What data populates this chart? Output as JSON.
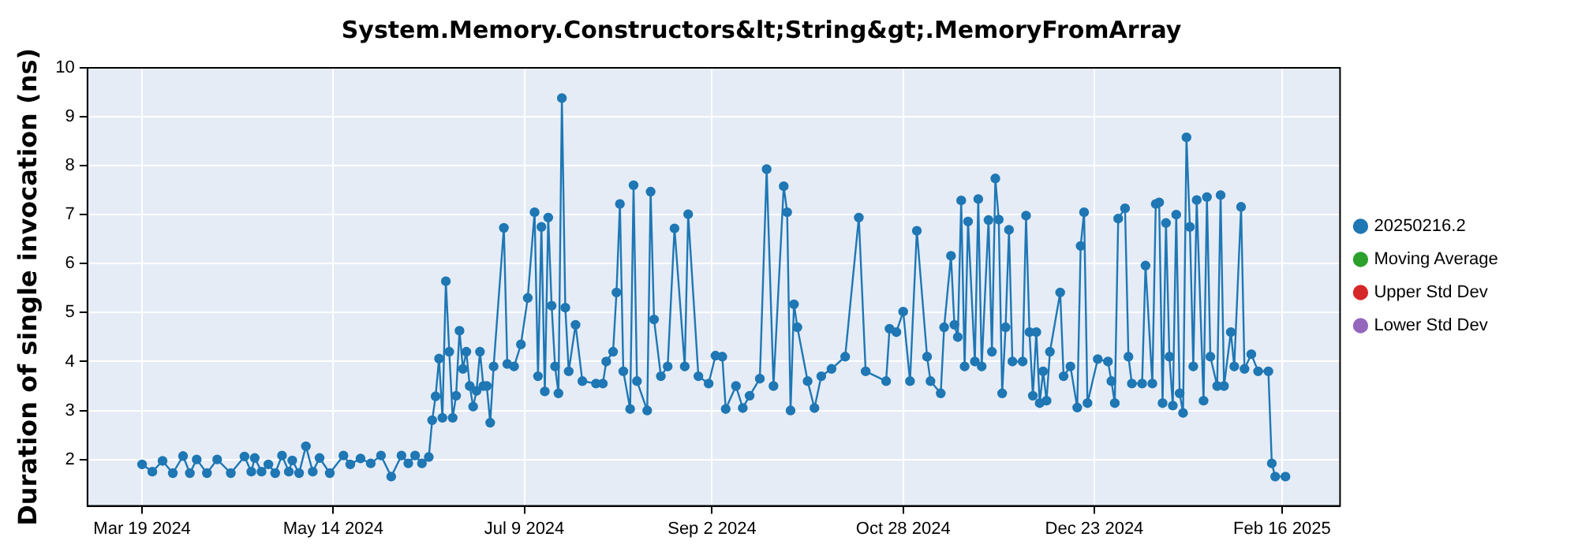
{
  "chart_data": {
    "type": "line",
    "title": "System.Memory.Constructors&lt;String&gt;.MemoryFromArray",
    "ylabel": "Duration of single invocation (ns)",
    "xlim": [
      "2024-03-03",
      "2025-03-05"
    ],
    "xticks": [
      {
        "value": "2024-03-19",
        "label": "Mar 19 2024"
      },
      {
        "value": "2024-05-14",
        "label": "May 14 2024"
      },
      {
        "value": "2024-07-09",
        "label": "Jul 9 2024"
      },
      {
        "value": "2024-09-02",
        "label": "Sep 2 2024"
      },
      {
        "value": "2024-10-28",
        "label": "Oct 28 2024"
      },
      {
        "value": "2024-12-23",
        "label": "Dec 23 2024"
      },
      {
        "value": "2025-02-16",
        "label": "Feb 16 2025"
      }
    ],
    "ylim": [
      1.05,
      10
    ],
    "yticks": [
      2,
      3,
      4,
      5,
      6,
      7,
      8,
      9,
      10
    ],
    "grid": true,
    "legend": "right",
    "marker": "circle",
    "series": [
      {
        "name": "20250216.2",
        "color": "#1f77b4",
        "x": [
          "2024-03-19",
          "2024-03-22",
          "2024-03-25",
          "2024-03-28",
          "2024-03-31",
          "2024-04-02",
          "2024-04-04",
          "2024-04-07",
          "2024-04-10",
          "2024-04-14",
          "2024-04-18",
          "2024-04-20",
          "2024-04-21",
          "2024-04-23",
          "2024-04-25",
          "2024-04-27",
          "2024-04-29",
          "2024-05-01",
          "2024-05-02",
          "2024-05-04",
          "2024-05-06",
          "2024-05-08",
          "2024-05-10",
          "2024-05-13",
          "2024-05-17",
          "2024-05-19",
          "2024-05-22",
          "2024-05-25",
          "2024-05-28",
          "2024-05-31",
          "2024-06-03",
          "2024-06-05",
          "2024-06-07",
          "2024-06-09",
          "2024-06-11",
          "2024-06-12",
          "2024-06-13",
          "2024-06-14",
          "2024-06-15",
          "2024-06-16",
          "2024-06-17",
          "2024-06-18",
          "2024-06-19",
          "2024-06-20",
          "2024-06-21",
          "2024-06-22",
          "2024-06-23",
          "2024-06-24",
          "2024-06-25",
          "2024-06-26",
          "2024-06-27",
          "2024-06-28",
          "2024-06-29",
          "2024-06-30",
          "2024-07-03",
          "2024-07-04",
          "2024-07-06",
          "2024-07-08",
          "2024-07-10",
          "2024-07-12",
          "2024-07-13",
          "2024-07-14",
          "2024-07-15",
          "2024-07-16",
          "2024-07-17",
          "2024-07-18",
          "2024-07-19",
          "2024-07-20",
          "2024-07-21",
          "2024-07-22",
          "2024-07-24",
          "2024-07-26",
          "2024-07-30",
          "2024-08-01",
          "2024-08-02",
          "2024-08-04",
          "2024-08-05",
          "2024-08-06",
          "2024-08-07",
          "2024-08-09",
          "2024-08-10",
          "2024-08-11",
          "2024-08-14",
          "2024-08-15",
          "2024-08-16",
          "2024-08-18",
          "2024-08-20",
          "2024-08-22",
          "2024-08-25",
          "2024-08-26",
          "2024-08-29",
          "2024-09-01",
          "2024-09-03",
          "2024-09-05",
          "2024-09-06",
          "2024-09-09",
          "2024-09-11",
          "2024-09-13",
          "2024-09-16",
          "2024-09-18",
          "2024-09-20",
          "2024-09-23",
          "2024-09-24",
          "2024-09-25",
          "2024-09-26",
          "2024-09-27",
          "2024-09-30",
          "2024-10-02",
          "2024-10-04",
          "2024-10-07",
          "2024-10-11",
          "2024-10-15",
          "2024-10-17",
          "2024-10-23",
          "2024-10-24",
          "2024-10-26",
          "2024-10-28",
          "2024-10-30",
          "2024-11-01",
          "2024-11-04",
          "2024-11-05",
          "2024-11-08",
          "2024-11-09",
          "2024-11-11",
          "2024-11-12",
          "2024-11-13",
          "2024-11-14",
          "2024-11-15",
          "2024-11-16",
          "2024-11-18",
          "2024-11-19",
          "2024-11-20",
          "2024-11-22",
          "2024-11-23",
          "2024-11-24",
          "2024-11-25",
          "2024-11-26",
          "2024-11-27",
          "2024-11-28",
          "2024-11-29",
          "2024-12-02",
          "2024-12-03",
          "2024-12-04",
          "2024-12-05",
          "2024-12-06",
          "2024-12-07",
          "2024-12-08",
          "2024-12-09",
          "2024-12-10",
          "2024-12-13",
          "2024-12-14",
          "2024-12-16",
          "2024-12-18",
          "2024-12-19",
          "2024-12-20",
          "2024-12-21",
          "2024-12-24",
          "2024-12-27",
          "2024-12-28",
          "2024-12-29",
          "2024-12-30",
          "2025-01-01",
          "2025-01-02",
          "2025-01-03",
          "2025-01-06",
          "2025-01-07",
          "2025-01-09",
          "2025-01-10",
          "2025-01-11",
          "2025-01-12",
          "2025-01-13",
          "2025-01-14",
          "2025-01-15",
          "2025-01-16",
          "2025-01-17",
          "2025-01-18",
          "2025-01-19",
          "2025-01-20",
          "2025-01-21",
          "2025-01-22",
          "2025-01-24",
          "2025-01-25",
          "2025-01-26",
          "2025-01-28",
          "2025-01-29",
          "2025-01-30",
          "2025-02-01",
          "2025-02-02",
          "2025-02-04",
          "2025-02-05",
          "2025-02-07",
          "2025-02-09",
          "2025-02-12",
          "2025-02-13",
          "2025-02-14",
          "2025-02-17"
        ],
        "values": [
          1.9,
          1.75,
          1.97,
          1.72,
          2.07,
          1.72,
          2.0,
          1.72,
          2.0,
          1.72,
          2.06,
          1.75,
          2.03,
          1.75,
          1.9,
          1.72,
          2.08,
          1.75,
          1.98,
          1.72,
          2.27,
          1.75,
          2.03,
          1.72,
          2.08,
          1.9,
          2.02,
          1.92,
          2.08,
          1.65,
          2.08,
          1.92,
          2.08,
          1.92,
          2.05,
          2.8,
          3.29,
          4.06,
          2.85,
          5.64,
          4.2,
          2.85,
          3.3,
          4.63,
          3.85,
          4.2,
          3.5,
          3.08,
          3.4,
          4.2,
          3.5,
          3.5,
          2.75,
          3.9,
          6.73,
          3.95,
          3.9,
          4.35,
          5.3,
          7.05,
          3.7,
          6.75,
          3.39,
          6.94,
          5.14,
          3.9,
          3.35,
          9.38,
          5.1,
          3.8,
          4.75,
          3.6,
          3.55,
          3.55,
          4.0,
          4.2,
          5.41,
          7.22,
          3.8,
          3.03,
          7.6,
          3.6,
          3.0,
          7.47,
          4.86,
          3.7,
          3.9,
          6.72,
          3.9,
          7.01,
          3.7,
          3.55,
          4.12,
          4.1,
          3.03,
          3.5,
          3.05,
          3.3,
          3.65,
          7.93,
          3.5,
          7.58,
          7.05,
          3.0,
          5.17,
          4.7,
          3.6,
          3.05,
          3.7,
          3.85,
          4.1,
          6.94,
          3.8,
          3.6,
          4.67,
          4.6,
          5.02,
          3.6,
          6.67,
          4.1,
          3.6,
          3.35,
          4.7,
          6.16,
          4.75,
          4.5,
          7.29,
          3.9,
          6.86,
          4.0,
          7.32,
          3.9,
          6.89,
          4.2,
          7.74,
          6.9,
          3.35,
          4.7,
          6.69,
          4.0,
          4.0,
          6.98,
          4.6,
          3.3,
          4.6,
          3.15,
          3.8,
          3.2,
          4.2,
          5.41,
          3.7,
          3.9,
          3.06,
          6.36,
          7.05,
          3.15,
          4.05,
          4.0,
          3.6,
          3.15,
          6.92,
          7.13,
          4.1,
          3.55,
          3.55,
          5.96,
          3.55,
          7.22,
          7.25,
          3.15,
          6.83,
          4.1,
          3.1,
          7.0,
          3.35,
          2.95,
          8.58,
          6.75,
          3.9,
          7.3,
          3.2,
          7.36,
          4.1,
          3.5,
          7.4,
          3.5,
          4.6,
          3.9,
          7.16,
          3.85,
          4.15,
          3.8,
          3.8,
          1.92,
          1.65,
          1.65
        ]
      },
      {
        "name": "Moving Average",
        "color": "#2ca02c"
      },
      {
        "name": "Upper Std Dev",
        "color": "#d62728"
      },
      {
        "name": "Lower Std Dev",
        "color": "#9467bd"
      }
    ]
  }
}
